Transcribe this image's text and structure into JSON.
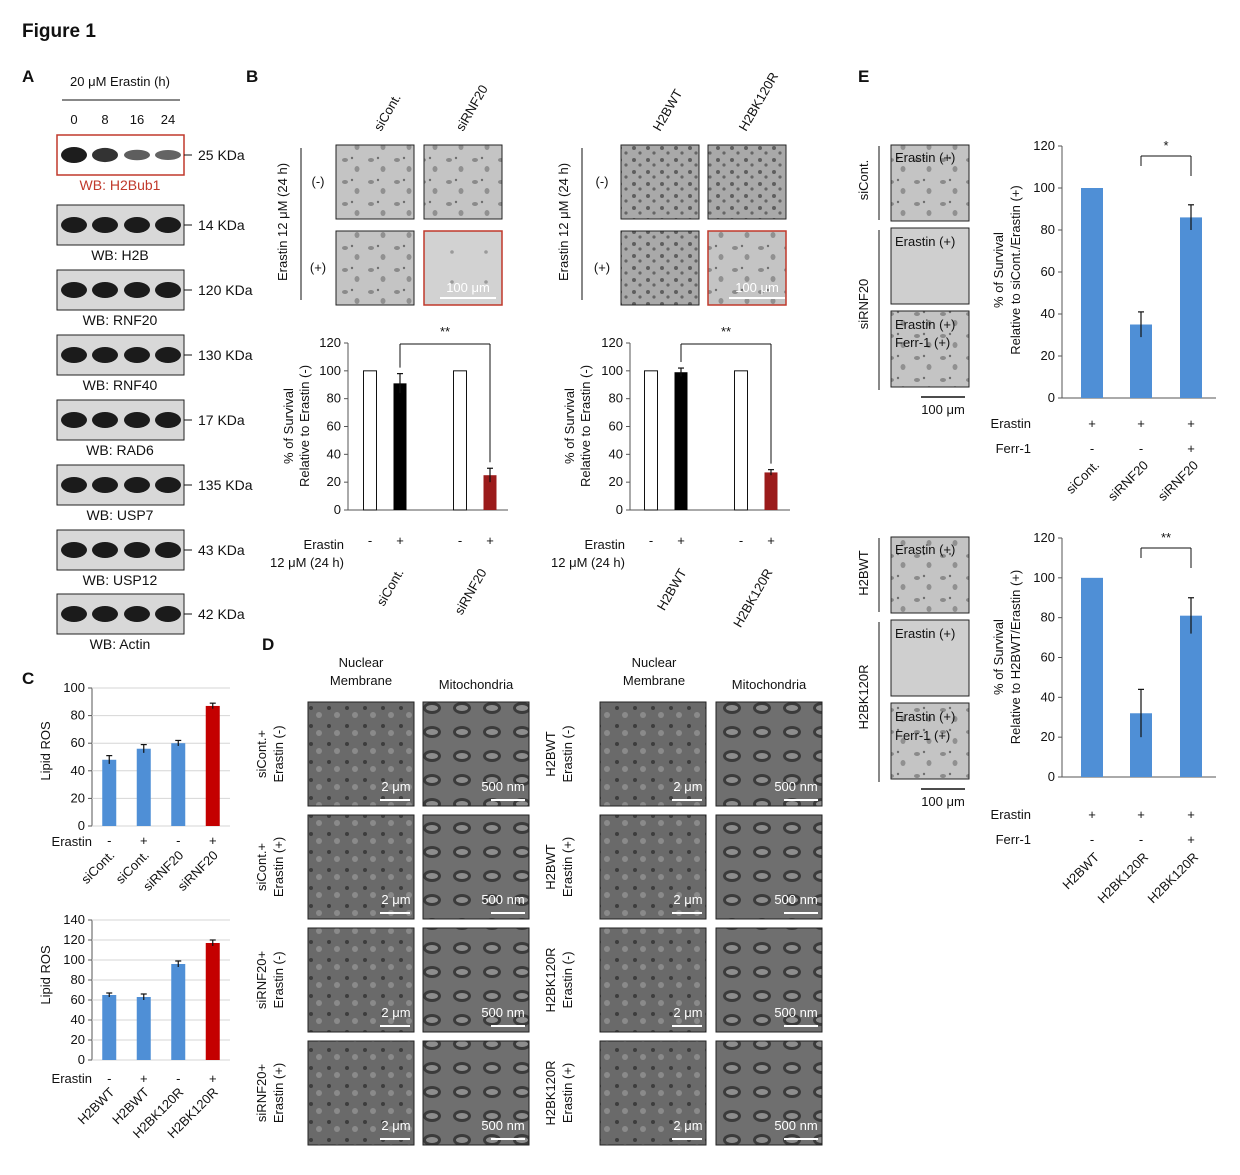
{
  "figure_title": "Figure 1",
  "panel_letters": [
    "A",
    "B",
    "C",
    "D",
    "E"
  ],
  "panelA": {
    "header": "20 μM Erastin (h)",
    "timepoints": [
      "0",
      "8",
      "16",
      "24"
    ],
    "blots": [
      {
        "wb": "WB: H2Bub1",
        "kda": "25 KDa",
        "highlight": true
      },
      {
        "wb": "WB: H2B",
        "kda": "14 KDa",
        "highlight": false
      },
      {
        "wb": "WB: RNF20",
        "kda": "120 KDa",
        "highlight": false
      },
      {
        "wb": "WB: RNF40",
        "kda": "130 KDa",
        "highlight": false
      },
      {
        "wb": "WB: RAD6",
        "kda": "17 KDa",
        "highlight": false
      },
      {
        "wb": "WB: USP7",
        "kda": "135 KDa",
        "highlight": false
      },
      {
        "wb": "WB: USP12",
        "kda": "43 KDa",
        "highlight": false
      },
      {
        "wb": "WB: Actin",
        "kda": "42 KDa",
        "highlight": false
      }
    ],
    "band_intensity": [
      [
        1.0,
        0.85,
        0.55,
        0.5
      ],
      [
        1,
        1,
        1,
        1
      ],
      [
        1,
        1,
        1,
        1
      ],
      [
        1,
        1,
        1,
        1
      ],
      [
        1,
        1,
        1,
        1
      ],
      [
        1,
        1,
        1,
        1
      ],
      [
        1,
        1,
        1,
        1
      ],
      [
        1,
        1,
        1,
        1
      ]
    ]
  },
  "panelB": {
    "rowtitle": "Erastin 12 μM (24 h)",
    "row_minus": "(-)",
    "row_plus": "(+)",
    "scalebar": "100 μm",
    "erastin_label": "Erastin",
    "treatment_label": "12 μM (24 h)",
    "ylabel1": "% of Survival",
    "ylabel2": "Relative to Erastin (-)",
    "signif": "**",
    "signs": [
      "-",
      "+",
      "-",
      "+"
    ],
    "left": {
      "cols": [
        "siCont.",
        "siRNF20"
      ],
      "groups": [
        "siCont.",
        "siRNF20"
      ]
    },
    "right": {
      "cols": [
        "H2BWT",
        "H2BK120R"
      ],
      "groups": [
        "H2BWT",
        "H2BK120R"
      ]
    }
  },
  "panelC": {
    "ylabel": "Lipid ROS",
    "erastin_label": "Erastin",
    "signs": [
      "-",
      "+",
      "-",
      "+"
    ]
  },
  "panelD": {
    "col_nuclear": [
      "Nuclear",
      "Membrane"
    ],
    "col_mito": "Mitochondria",
    "scale_nuclear": "2 μm",
    "scale_mito": "500 nm",
    "left_rows": [
      [
        "siCont.+",
        "Erastin (-)"
      ],
      [
        "siCont.+",
        "Erastin (+)"
      ],
      [
        "siRNF20+",
        "Erastin (-)"
      ],
      [
        "siRNF20+",
        "Erastin (+)"
      ]
    ],
    "right_rows": [
      [
        "H2BWT",
        "Erastin (-)"
      ],
      [
        "H2BWT",
        "Erastin (+)"
      ],
      [
        "H2BK120R",
        "Erastin (-)"
      ],
      [
        "H2BK120R",
        "Erastin (+)"
      ]
    ]
  },
  "panelE": {
    "top": {
      "cond1": "siCont.",
      "cond2": "siRNF20",
      "img_labels": [
        "Erastin (+)",
        "Erastin (+)",
        "Erastin (+)"
      ],
      "ferr_label": "Ferr-1 (+)",
      "ylabel1": "% of Survival",
      "ylabel2": "Relative to siCont./Erastin (+)",
      "signif": "*",
      "erastin_row": [
        "+",
        "+",
        "+"
      ],
      "ferr_row": [
        "-",
        "-",
        "+"
      ]
    },
    "bottom": {
      "cond1": "H2BWT",
      "cond2": "H2BK120R",
      "img_labels": [
        "Erastin (+)",
        "Erastin (+)",
        "Erastin (+)"
      ],
      "ferr_label": "Ferr-1 (+)",
      "ylabel1": "% of Survival",
      "ylabel2": "Relative to H2BWT/Erastin (+)",
      "signif": "**",
      "erastin_row": [
        "+",
        "+",
        "+"
      ],
      "ferr_row": [
        "-",
        "-",
        "+"
      ]
    },
    "scalebar": "100 μm",
    "erastin_label": "Erastin",
    "ferr_label_axis": "Ferr-1"
  },
  "chart_data": [
    {
      "type": "bar",
      "panel": "B-left",
      "categories": [
        "siCont.",
        "siCont.",
        "siRNF20",
        "siRNF20"
      ],
      "values": [
        100,
        91,
        100,
        25
      ],
      "errors": [
        0,
        7,
        0,
        5
      ],
      "ylim": [
        0,
        120
      ],
      "yticks": [
        0,
        20,
        40,
        60,
        80,
        100,
        120
      ],
      "colors": [
        "#ffffff",
        "#000000",
        "#ffffff",
        "#9b1b1b"
      ],
      "xlabel": "",
      "ylabel": "% of Survival Relative to Erastin (-)"
    },
    {
      "type": "bar",
      "panel": "B-right",
      "categories": [
        "H2BWT",
        "H2BWT",
        "H2BK120R",
        "H2BK120R"
      ],
      "values": [
        100,
        99,
        100,
        27
      ],
      "errors": [
        0,
        3,
        0,
        2
      ],
      "ylim": [
        0,
        120
      ],
      "yticks": [
        0,
        20,
        40,
        60,
        80,
        100,
        120
      ],
      "colors": [
        "#ffffff",
        "#000000",
        "#ffffff",
        "#9b1b1b"
      ],
      "xlabel": "",
      "ylabel": "% of Survival Relative to Erastin (-)"
    },
    {
      "type": "bar",
      "panel": "C-top",
      "categories": [
        "siCont.",
        "siCont.",
        "siRNF20",
        "siRNF20"
      ],
      "values": [
        48,
        56,
        60,
        87
      ],
      "errors": [
        3,
        3,
        2,
        2
      ],
      "ylim": [
        0,
        100
      ],
      "yticks": [
        0,
        20,
        40,
        60,
        80,
        100
      ],
      "colors": [
        "#4f8fd6",
        "#4f8fd6",
        "#4f8fd6",
        "#c40000"
      ],
      "xlabel": "",
      "ylabel": "Lipid ROS"
    },
    {
      "type": "bar",
      "panel": "C-bottom",
      "categories": [
        "H2BWT",
        "H2BWT",
        "H2BK120R",
        "H2BK120R"
      ],
      "values": [
        65,
        63,
        96,
        117
      ],
      "errors": [
        2,
        3,
        3,
        3
      ],
      "ylim": [
        0,
        140
      ],
      "yticks": [
        0,
        20,
        40,
        60,
        80,
        100,
        120,
        140
      ],
      "colors": [
        "#4f8fd6",
        "#4f8fd6",
        "#4f8fd6",
        "#c40000"
      ],
      "xlabel": "",
      "ylabel": "Lipid ROS"
    },
    {
      "type": "bar",
      "panel": "E-top",
      "categories": [
        "siCont.",
        "siRNF20",
        "siRNF20"
      ],
      "values": [
        100,
        35,
        86
      ],
      "errors": [
        0,
        6,
        6
      ],
      "ylim": [
        0,
        120
      ],
      "yticks": [
        0,
        20,
        40,
        60,
        80,
        100,
        120
      ],
      "colors": [
        "#4f8fd6",
        "#4f8fd6",
        "#4f8fd6"
      ],
      "xlabel": "",
      "ylabel": "% of Survival Relative to siCont./Erastin (+)"
    },
    {
      "type": "bar",
      "panel": "E-bottom",
      "categories": [
        "H2BWT",
        "H2BK120R",
        "H2BK120R"
      ],
      "values": [
        100,
        32,
        81
      ],
      "errors": [
        0,
        12,
        9
      ],
      "ylim": [
        0,
        120
      ],
      "yticks": [
        0,
        20,
        40,
        60,
        80,
        100,
        120
      ],
      "colors": [
        "#4f8fd6",
        "#4f8fd6",
        "#4f8fd6"
      ],
      "xlabel": "",
      "ylabel": "% of Survival Relative to H2BWT/Erastin (+)"
    }
  ]
}
